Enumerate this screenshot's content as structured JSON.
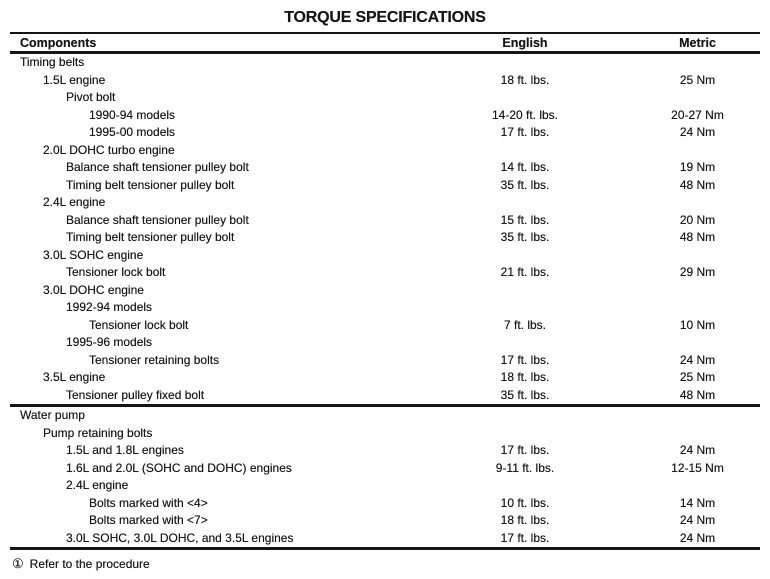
{
  "title": "TORQUE SPECIFICATIONS",
  "columns": {
    "component": "Components",
    "english": "English",
    "metric": "Metric"
  },
  "rows": [
    {
      "label": "Timing belts",
      "indent": 0,
      "english": "",
      "metric": ""
    },
    {
      "label": "1.5L engine",
      "indent": 1,
      "english": "18 ft. lbs.",
      "metric": "25 Nm"
    },
    {
      "label": "Pivot bolt",
      "indent": 2,
      "english": "",
      "metric": ""
    },
    {
      "label": "1990-94 models",
      "indent": 3,
      "english": "14-20 ft. lbs.",
      "metric": "20-27 Nm"
    },
    {
      "label": "1995-00 models",
      "indent": 3,
      "english": "17 ft. lbs.",
      "metric": "24 Nm"
    },
    {
      "label": "2.0L DOHC turbo engine",
      "indent": 1,
      "english": "",
      "metric": ""
    },
    {
      "label": "Balance shaft tensioner pulley bolt",
      "indent": 2,
      "english": "14 ft. lbs.",
      "metric": "19 Nm"
    },
    {
      "label": "Timing belt tensioner pulley bolt",
      "indent": 2,
      "english": "35 ft. lbs.",
      "metric": "48 Nm"
    },
    {
      "label": "2.4L engine",
      "indent": 1,
      "english": "",
      "metric": ""
    },
    {
      "label": "Balance shaft tensioner pulley bolt",
      "indent": 2,
      "english": "15 ft. lbs.",
      "metric": "20 Nm"
    },
    {
      "label": "Timing belt tensioner pulley bolt",
      "indent": 2,
      "english": "35 ft. lbs.",
      "metric": "48 Nm"
    },
    {
      "label": "3.0L SOHC engine",
      "indent": 1,
      "english": "",
      "metric": ""
    },
    {
      "label": "Tensioner lock bolt",
      "indent": 2,
      "english": "21 ft. lbs.",
      "metric": "29 Nm"
    },
    {
      "label": "3.0L DOHC engine",
      "indent": 1,
      "english": "",
      "metric": ""
    },
    {
      "label": "1992-94 models",
      "indent": 2,
      "english": "",
      "metric": ""
    },
    {
      "label": "Tensioner lock bolt",
      "indent": 3,
      "english": "7 ft. lbs.",
      "metric": "10 Nm"
    },
    {
      "label": "1995-96 models",
      "indent": 2,
      "english": "",
      "metric": ""
    },
    {
      "label": "Tensioner retaining bolts",
      "indent": 3,
      "english": "17 ft. lbs.",
      "metric": "24 Nm"
    },
    {
      "label": "3.5L engine",
      "indent": 1,
      "english": "18 ft. lbs.",
      "metric": "25 Nm"
    },
    {
      "label": "Tensioner pulley fixed bolt",
      "indent": 2,
      "english": "35 ft. lbs.",
      "metric": "48 Nm"
    },
    {
      "label": "Water pump",
      "indent": 0,
      "english": "",
      "metric": "",
      "divider_before": true
    },
    {
      "label": "Pump retaining bolts",
      "indent": 1,
      "english": "",
      "metric": ""
    },
    {
      "label": "1.5L and 1.8L engines",
      "indent": 2,
      "english": "17 ft. lbs.",
      "metric": "24 Nm"
    },
    {
      "label": "1.6L and 2.0L (SOHC and DOHC) engines",
      "indent": 2,
      "english": "9-11 ft. lbs.",
      "metric": "12-15 Nm"
    },
    {
      "label": "2.4L engine",
      "indent": 2,
      "english": "",
      "metric": ""
    },
    {
      "label": "Bolts marked with <4>",
      "indent": 3,
      "english": "10 ft. lbs.",
      "metric": "14 Nm"
    },
    {
      "label": "Bolts marked with <7>",
      "indent": 3,
      "english": "18 ft. lbs.",
      "metric": "24 Nm"
    },
    {
      "label": "3.0L SOHC, 3.0L DOHC, and 3.5L engines",
      "indent": 2,
      "english": "17 ft. lbs.",
      "metric": "24 Nm"
    }
  ],
  "footnote": {
    "symbol": "①",
    "text": "Refer to the procedure"
  }
}
